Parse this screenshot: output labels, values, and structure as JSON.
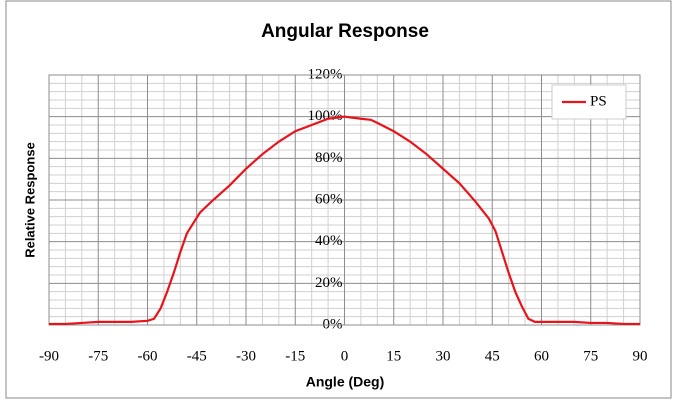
{
  "chart_data": {
    "type": "line",
    "title": "Angular Response",
    "x_label": "Angle (Deg)",
    "y_label": "Relative Response",
    "x": [
      -90,
      -85,
      -80,
      -75,
      -70,
      -65,
      -60,
      -58,
      -56,
      -54,
      -52,
      -50,
      -48,
      -46,
      -44,
      -42,
      -40,
      -35,
      -30,
      -25,
      -20,
      -15,
      -10,
      -5,
      0,
      5,
      8,
      10,
      15,
      20,
      25,
      30,
      35,
      40,
      42,
      44,
      46,
      48,
      50,
      52,
      54,
      56,
      58,
      60,
      65,
      70,
      75,
      80,
      85,
      90
    ],
    "series": [
      {
        "name": "PS",
        "color": "#e8141c",
        "values": [
          0.5,
          0.5,
          1,
          1.5,
          1.5,
          1.5,
          2,
          3,
          8,
          16,
          25,
          35,
          44,
          49,
          54,
          57,
          60,
          67,
          75,
          82,
          88,
          93,
          96,
          99,
          100,
          99,
          98.5,
          97,
          93,
          88,
          82,
          75,
          68,
          59,
          55,
          51,
          45,
          35,
          25,
          16,
          9,
          3,
          1.5,
          1.5,
          1.5,
          1.5,
          1,
          1,
          0.5,
          0.5
        ]
      }
    ],
    "xlim": [
      -90,
      90
    ],
    "xticks": [
      -90,
      -75,
      -60,
      -45,
      -30,
      -15,
      0,
      15,
      30,
      45,
      60,
      75,
      90
    ],
    "ylim": [
      0,
      120
    ],
    "yticks": [
      {
        "value": 0,
        "label": "0%"
      },
      {
        "value": 20,
        "label": "20%"
      },
      {
        "value": 40,
        "label": "40%"
      },
      {
        "value": 60,
        "label": "60%"
      },
      {
        "value": 80,
        "label": "80%"
      },
      {
        "value": 100,
        "label": "100%"
      },
      {
        "value": 120,
        "label": "120%"
      }
    ],
    "x_minor_ticks": [
      -85,
      -80,
      -70,
      -65,
      -55,
      -50,
      -40,
      -35,
      -25,
      -20,
      -10,
      -5,
      5,
      10,
      20,
      25,
      35,
      40,
      50,
      55,
      65,
      70,
      80,
      85
    ],
    "y_minor_ticks": [
      4,
      8,
      12,
      16,
      24,
      28,
      32,
      36,
      44,
      48,
      52,
      56,
      64,
      68,
      72,
      76,
      84,
      88,
      92,
      96,
      104,
      108,
      112,
      116
    ],
    "grid": true,
    "legend": "top-right"
  }
}
